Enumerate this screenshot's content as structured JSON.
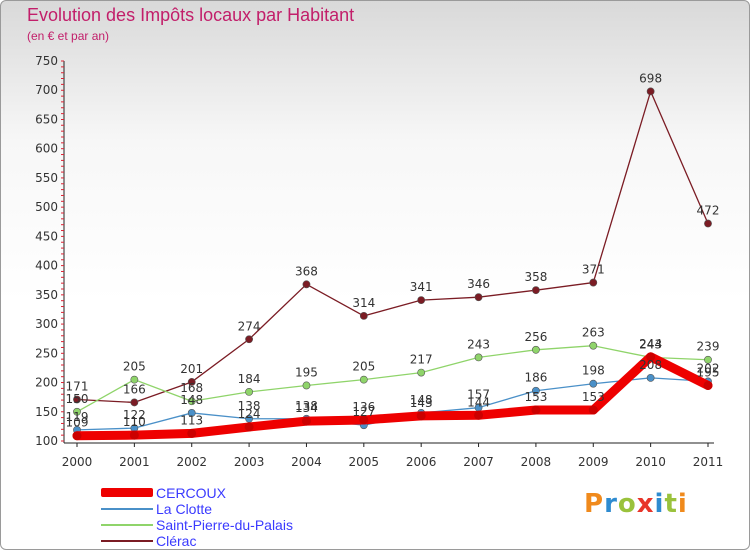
{
  "title": "Evolution des Impôts locaux par Habitant",
  "subtitle": "(en € et par an)",
  "logo": {
    "text": "Proxiti",
    "letter_colors": [
      "#f08a1c",
      "#2e8bd0",
      "#9ac23c",
      "#e8352a",
      "#2e8bd0",
      "#9ac23c",
      "#f08a1c"
    ]
  },
  "chart_data": {
    "type": "line",
    "x": [
      "2000",
      "2001",
      "2002",
      "2003",
      "2004",
      "2005",
      "2006",
      "2007",
      "2008",
      "2009",
      "2010",
      "2011"
    ],
    "ylim": [
      100,
      750
    ],
    "yticks": [
      100,
      150,
      200,
      250,
      300,
      350,
      400,
      450,
      500,
      550,
      600,
      650,
      700,
      750
    ],
    "grid": false,
    "series": [
      {
        "name": "Clérac",
        "color": "#7b1c24",
        "values": [
          171,
          166,
          201,
          274,
          368,
          314,
          341,
          346,
          358,
          371,
          698,
          472
        ],
        "labels": [
          "171",
          "166",
          "201",
          "274",
          "368",
          "314",
          "341",
          "346",
          "358",
          "371",
          "698",
          "472"
        ]
      },
      {
        "name": "Saint-Pierre-du-Palais",
        "color": "#8fd46a",
        "values": [
          150,
          205,
          168,
          184,
          195,
          205,
          217,
          243,
          256,
          263,
          243,
          239
        ],
        "labels": [
          "150",
          "205",
          "168",
          "184",
          "195",
          "205",
          "217",
          "243",
          "256",
          "263",
          "243",
          "239"
        ]
      },
      {
        "name": "La Clotte",
        "color": "#4a90c8",
        "values": [
          119,
          122,
          148,
          138,
          138,
          127,
          148,
          157,
          186,
          198,
          208,
          202
        ],
        "labels": [
          "119",
          "122",
          "148",
          "138",
          "138",
          "127",
          "148",
          "157",
          "186",
          "198",
          "208",
          "202"
        ]
      },
      {
        "name": "CERCOUX",
        "color": "#ee0000",
        "values": [
          109,
          110,
          113,
          124,
          134,
          136,
          143,
          144,
          153,
          153,
          244,
          195
        ],
        "labels": [
          "109",
          "110",
          "113",
          "124",
          "134",
          "136",
          "143",
          "144",
          "153",
          "153",
          "244",
          "195"
        ]
      }
    ],
    "legend": [
      {
        "name": "CERCOUX",
        "color": "#ee0000",
        "thick": true
      },
      {
        "name": "La Clotte",
        "color": "#4a90c8",
        "thick": false
      },
      {
        "name": "Saint-Pierre-du-Palais",
        "color": "#8fd46a",
        "thick": false
      },
      {
        "name": "Clérac",
        "color": "#7b1c24",
        "thick": false
      }
    ]
  }
}
